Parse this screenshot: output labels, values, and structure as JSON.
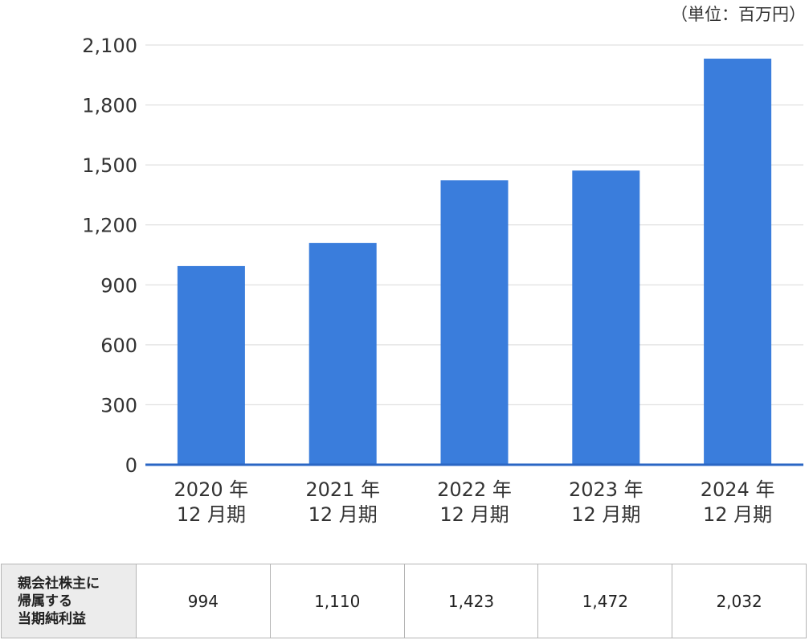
{
  "unit_label": "（単位：百万円）",
  "chart_data": {
    "type": "bar",
    "categories": [
      [
        "2020 年",
        "12 月期"
      ],
      [
        "2021 年",
        "12 月期"
      ],
      [
        "2022 年",
        "12 月期"
      ],
      [
        "2023 年",
        "12 月期"
      ],
      [
        "2024 年",
        "12 月期"
      ]
    ],
    "values": [
      994,
      1110,
      1423,
      1472,
      2032
    ],
    "ylim": [
      0,
      2100
    ],
    "yticks": [
      0,
      300,
      600,
      900,
      1200,
      1500,
      1800,
      2100
    ],
    "ytick_labels": [
      "0",
      "300",
      "600",
      "900",
      "1,200",
      "1,500",
      "1,800",
      "2,100"
    ],
    "grid": true,
    "bar_color": "#3a7ddc",
    "axis_color": "#2a66c4"
  },
  "table": {
    "header_lines": [
      "親会社株主に",
      "帰属する",
      "当期純利益"
    ],
    "cells": [
      "994",
      "1,110",
      "1,423",
      "1,472",
      "2,032"
    ]
  }
}
